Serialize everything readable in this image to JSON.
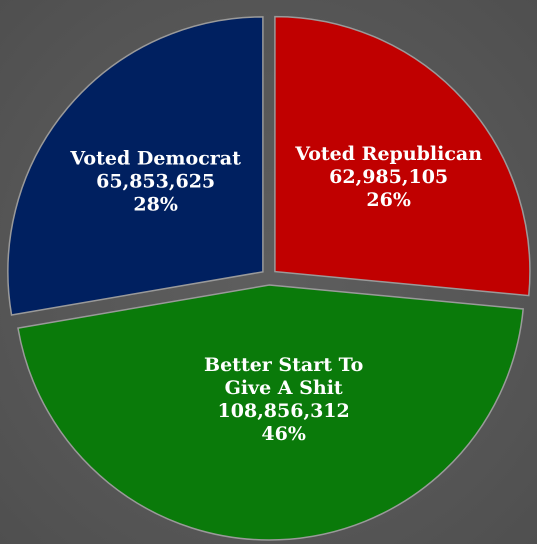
{
  "chart_data": {
    "type": "pie",
    "slices": [
      {
        "label_lines": [
          "Voted Republican"
        ],
        "value": "62,985,105",
        "percent": "26%",
        "raw": 62985105,
        "color": "#c00000"
      },
      {
        "label_lines": [
          "Better Start To",
          "Give A Shit"
        ],
        "value": "108,856,312",
        "percent": "46%",
        "raw": 108856312,
        "color": "#0a7a0a"
      },
      {
        "label_lines": [
          "Voted Democrat"
        ],
        "value": "65,853,625",
        "percent": "28%",
        "raw": 65853625,
        "color": "#002060"
      }
    ],
    "legend": "none",
    "exploded": true
  }
}
